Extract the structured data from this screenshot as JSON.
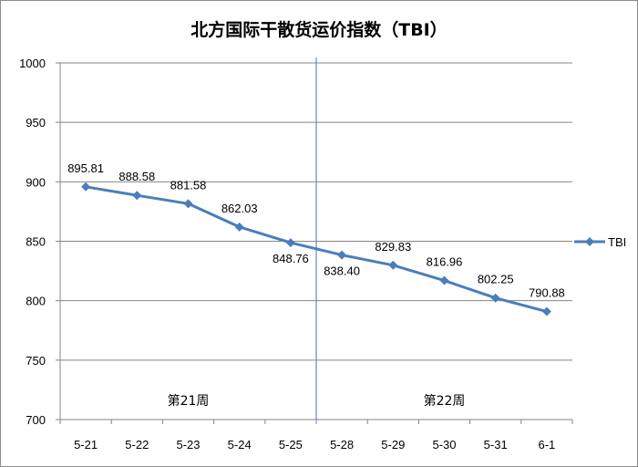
{
  "chart_data": {
    "type": "line",
    "title": "北方国际干散货运价指数（TBI）",
    "categories": [
      "5-21",
      "5-22",
      "5-23",
      "5-24",
      "5-25",
      "5-28",
      "5-29",
      "5-30",
      "5-31",
      "6-1"
    ],
    "series": [
      {
        "name": "TBI",
        "values": [
          895.81,
          888.58,
          881.58,
          862.03,
          848.76,
          838.4,
          829.83,
          816.96,
          802.25,
          790.88
        ],
        "labels": [
          "895.81",
          "888.58",
          "881.58",
          "862.03",
          "848.76",
          "838.40",
          "829.83",
          "816.96",
          "802.25",
          "790.88"
        ],
        "color": "#4a7ebb"
      }
    ],
    "ylim": [
      700,
      1000
    ],
    "yticks": [
      "700",
      "750",
      "800",
      "850",
      "900",
      "950",
      "1000"
    ],
    "grid": true,
    "legend": "right",
    "divider_after_category": "5-25",
    "annotations": [
      {
        "text": "第21周",
        "week": 1
      },
      {
        "text": "第22周",
        "week": 2
      }
    ],
    "colors": {
      "series": "#4a7ebb",
      "grid": "#868686",
      "divider": "#5b8ac4"
    }
  }
}
